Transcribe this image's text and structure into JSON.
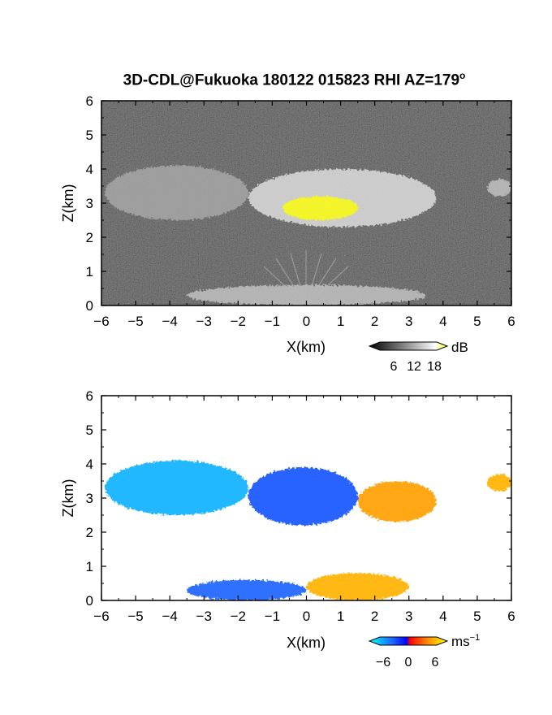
{
  "figure": {
    "title_main": "3D-CDL@Fukuoka 180122 015823 RHI AZ=179",
    "title_degree": "o"
  },
  "chart_data": [
    {
      "type": "heatmap",
      "title": "",
      "quantity": "backscatter intensity",
      "xlabel": "X(km)",
      "ylabel": "Z(km)",
      "xlim": [
        -6,
        6
      ],
      "ylim": [
        0,
        6
      ],
      "xticks": [
        -6,
        -5,
        -4,
        -3,
        -2,
        -1,
        0,
        1,
        2,
        3,
        4,
        5,
        6
      ],
      "yticks": [
        0,
        1,
        2,
        3,
        4,
        5,
        6
      ],
      "background": "noisy grey/black clear-air signal",
      "colorbar": {
        "unit": "dB",
        "ticks": [
          6,
          12,
          18
        ],
        "colors": [
          "#000000",
          "#ffffff",
          "#ffff00"
        ]
      },
      "features": [
        {
          "name": "cloud layer west",
          "x_range": [
            -5.9,
            -1.7
          ],
          "z_range": [
            2.5,
            4.1
          ],
          "intensity_db": 12
        },
        {
          "name": "cloud layer central",
          "x_range": [
            -1.7,
            3.8
          ],
          "z_range": [
            2.3,
            4.0
          ],
          "intensity_db": 16
        },
        {
          "name": "cloud layer east",
          "x_range": [
            5.3,
            6.0
          ],
          "z_range": [
            3.2,
            3.7
          ],
          "intensity_db": 14
        },
        {
          "name": "saturated patches",
          "x_range": [
            -0.7,
            1.5
          ],
          "z_range": [
            2.5,
            3.2
          ],
          "intensity_db": 19
        },
        {
          "name": "near-ground returns",
          "x_range": [
            -3.5,
            3.5
          ],
          "z_range": [
            0,
            0.6
          ],
          "intensity_db": 14
        }
      ]
    },
    {
      "type": "heatmap",
      "title": "",
      "quantity": "radial velocity",
      "xlabel": "X(km)",
      "ylabel": "Z(km)",
      "xlim": [
        -6,
        6
      ],
      "ylim": [
        0,
        6
      ],
      "xticks": [
        -6,
        -5,
        -4,
        -3,
        -2,
        -1,
        0,
        1,
        2,
        3,
        4,
        5,
        6
      ],
      "yticks": [
        0,
        1,
        2,
        3,
        4,
        5,
        6
      ],
      "colorbar": {
        "unit": "ms",
        "unit_exponent": "−1",
        "ticks": [
          "−6",
          "0",
          "6"
        ],
        "colors": [
          "#00ffff",
          "#1e64ff",
          "#0000ff",
          "#ff0000",
          "#ff8c00",
          "#ffff00"
        ]
      },
      "features": [
        {
          "name": "cloud layer west",
          "x_range": [
            -5.9,
            -1.7
          ],
          "z_range": [
            2.5,
            4.1
          ],
          "velocity_ms": -5
        },
        {
          "name": "cloud layer central-west",
          "x_range": [
            -1.7,
            1.5
          ],
          "z_range": [
            2.2,
            3.9
          ],
          "velocity_ms": -3.5
        },
        {
          "name": "cloud layer central-east",
          "x_range": [
            1.5,
            3.8
          ],
          "z_range": [
            2.3,
            3.5
          ],
          "velocity_ms": 3.5
        },
        {
          "name": "cloud layer east",
          "x_range": [
            5.3,
            6.0
          ],
          "z_range": [
            3.2,
            3.7
          ],
          "velocity_ms": 4
        },
        {
          "name": "boundary layer west",
          "x_range": [
            -3.5,
            0
          ],
          "z_range": [
            0,
            0.6
          ],
          "velocity_ms": -4
        },
        {
          "name": "boundary layer east",
          "x_range": [
            0,
            3.0
          ],
          "z_range": [
            0,
            0.8
          ],
          "velocity_ms": 4
        }
      ]
    }
  ]
}
